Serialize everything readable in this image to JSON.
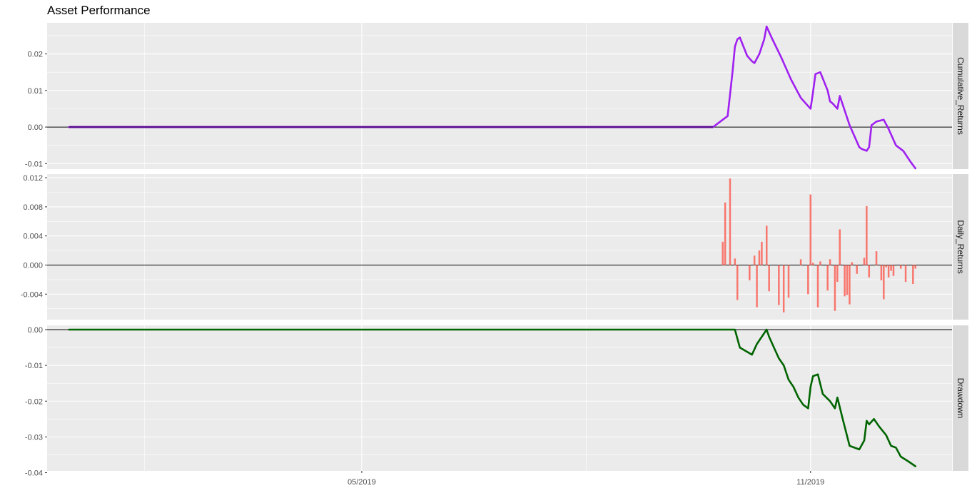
{
  "chart_data": {
    "type": "line",
    "title": "Asset Performance",
    "x_tick_labels": [
      "05/2019",
      "11/2019"
    ],
    "colors": {
      "panel_bg": "#EBEBEB",
      "grid": "#FFFFFF",
      "strip_bg": "#D9D9D9",
      "cumulative_line": "#A020F0",
      "cumulative_flat": "#5A0A90",
      "daily_bars": "#F8766D",
      "drawdown_line": "#006400",
      "zero_line": "#000000"
    },
    "panels": [
      {
        "strip_label": "Cumulative_Returns",
        "type": "line",
        "ylim": [
          -0.0115,
          0.0285
        ],
        "y_ticks": [
          0.02,
          0.01,
          0.0,
          -0.01
        ],
        "y_tick_labels": [
          "0.02",
          "0.01",
          "0.00",
          "-0.01"
        ],
        "series": [
          {
            "x": [
              "2019-01-01",
              "2019-09-22",
              "2019-09-26",
              "2019-09-28",
              "2019-09-30",
              "2019-10-01",
              "2019-10-02",
              "2019-10-03",
              "2019-10-06",
              "2019-10-08",
              "2019-10-09",
              "2019-10-11",
              "2019-10-13",
              "2019-10-14",
              "2019-10-16",
              "2019-10-20",
              "2019-10-21",
              "2019-10-24",
              "2019-10-28",
              "2019-10-30",
              "2019-11-01",
              "2019-11-02",
              "2019-11-03",
              "2019-11-05",
              "2019-11-08",
              "2019-11-09",
              "2019-11-10",
              "2019-11-12",
              "2019-11-13",
              "2019-11-17",
              "2019-11-21",
              "2019-11-22",
              "2019-11-24",
              "2019-11-25",
              "2019-11-26",
              "2019-11-28",
              "2019-12-01",
              "2019-12-03",
              "2019-12-06",
              "2019-12-07",
              "2019-12-09",
              "2019-12-12",
              "2019-12-14"
            ],
            "values": [
              0.0,
              0.0,
              0.002,
              0.003,
              0.015,
              0.022,
              0.024,
              0.0245,
              0.0195,
              0.018,
              0.0175,
              0.02,
              0.024,
              0.0275,
              0.0245,
              0.019,
              0.0175,
              0.013,
              0.008,
              0.0065,
              0.005,
              0.0095,
              0.0145,
              0.015,
              0.01,
              0.007,
              0.0065,
              0.005,
              0.0085,
              0.0005,
              -0.0055,
              -0.006,
              -0.0065,
              -0.0055,
              0.0005,
              0.0015,
              0.002,
              -0.0005,
              -0.005,
              -0.0055,
              -0.0065,
              -0.0095,
              -0.0113
            ]
          }
        ]
      },
      {
        "strip_label": "Daily_Returns",
        "type": "bar",
        "ylim": [
          -0.0075,
          0.0125
        ],
        "y_ticks": [
          0.012,
          0.008,
          0.004,
          0.0,
          -0.004
        ],
        "y_tick_labels": [
          "0.012",
          "0.008",
          "0.004",
          "0.000",
          "-0.004"
        ],
        "series": [
          {
            "x": [
              "2019-09-26",
              "2019-09-27",
              "2019-09-29",
              "2019-10-01",
              "2019-10-02",
              "2019-10-07",
              "2019-10-09",
              "2019-10-10",
              "2019-10-11",
              "2019-10-12",
              "2019-10-14",
              "2019-10-15",
              "2019-10-19",
              "2019-10-21",
              "2019-10-23",
              "2019-10-28",
              "2019-10-31",
              "2019-11-01",
              "2019-11-02",
              "2019-11-04",
              "2019-11-05",
              "2019-11-08",
              "2019-11-09",
              "2019-11-11",
              "2019-11-12",
              "2019-11-13",
              "2019-11-15",
              "2019-11-16",
              "2019-11-17",
              "2019-11-18",
              "2019-11-20",
              "2019-11-23",
              "2019-11-24",
              "2019-11-25",
              "2019-11-28",
              "2019-11-30",
              "2019-12-01",
              "2019-12-02",
              "2019-12-03",
              "2019-12-04",
              "2019-12-05",
              "2019-12-08",
              "2019-12-10",
              "2019-12-13",
              "2019-12-14"
            ],
            "values": [
              0.0032,
              0.0086,
              0.0119,
              0.0009,
              -0.0048,
              -0.0021,
              0.0013,
              -0.0058,
              0.002,
              0.0032,
              0.0054,
              -0.0036,
              -0.0055,
              -0.0065,
              -0.0045,
              0.0008,
              -0.004,
              0.0097,
              0.0003,
              -0.0058,
              0.0005,
              -0.0035,
              0.0008,
              -0.0063,
              -0.0023,
              0.0049,
              -0.0043,
              -0.0041,
              -0.0054,
              0.0004,
              -0.0012,
              0.001,
              0.0081,
              -0.0017,
              0.0019,
              -0.0021,
              -0.0047,
              -0.0003,
              -0.0017,
              -0.0008,
              -0.0015,
              -0.0005,
              -0.0023,
              -0.0026,
              -0.0005
            ]
          }
        ]
      },
      {
        "strip_label": "Drawdown",
        "type": "line",
        "ylim": [
          -0.0395,
          0.0012
        ],
        "y_ticks": [
          0.0,
          -0.01,
          -0.02,
          -0.03,
          -0.04
        ],
        "y_tick_labels": [
          "0.00",
          "-0.01",
          "-0.02",
          "-0.03",
          "-0.04"
        ],
        "series": [
          {
            "x": [
              "2019-01-01",
              "2019-10-01",
              "2019-10-03",
              "2019-10-08",
              "2019-10-10",
              "2019-10-14",
              "2019-10-15",
              "2019-10-17",
              "2019-10-19",
              "2019-10-21",
              "2019-10-23",
              "2019-10-25",
              "2019-10-27",
              "2019-10-29",
              "2019-10-31",
              "2019-11-01",
              "2019-11-02",
              "2019-11-04",
              "2019-11-06",
              "2019-11-09",
              "2019-11-11",
              "2019-11-12",
              "2019-11-14",
              "2019-11-17",
              "2019-11-21",
              "2019-11-23",
              "2019-11-24",
              "2019-11-25",
              "2019-11-27",
              "2019-11-29",
              "2019-12-02",
              "2019-12-04",
              "2019-12-06",
              "2019-12-08",
              "2019-12-11",
              "2019-12-14"
            ],
            "values": [
              0.0,
              0.0,
              -0.005,
              -0.007,
              -0.004,
              0.0,
              -0.002,
              -0.005,
              -0.008,
              -0.01,
              -0.014,
              -0.016,
              -0.019,
              -0.021,
              -0.022,
              -0.016,
              -0.013,
              -0.0125,
              -0.018,
              -0.02,
              -0.022,
              -0.019,
              -0.0245,
              -0.0325,
              -0.0335,
              -0.031,
              -0.0255,
              -0.0265,
              -0.025,
              -0.027,
              -0.0295,
              -0.0325,
              -0.033,
              -0.0355,
              -0.0368,
              -0.0382
            ]
          }
        ]
      }
    ]
  }
}
